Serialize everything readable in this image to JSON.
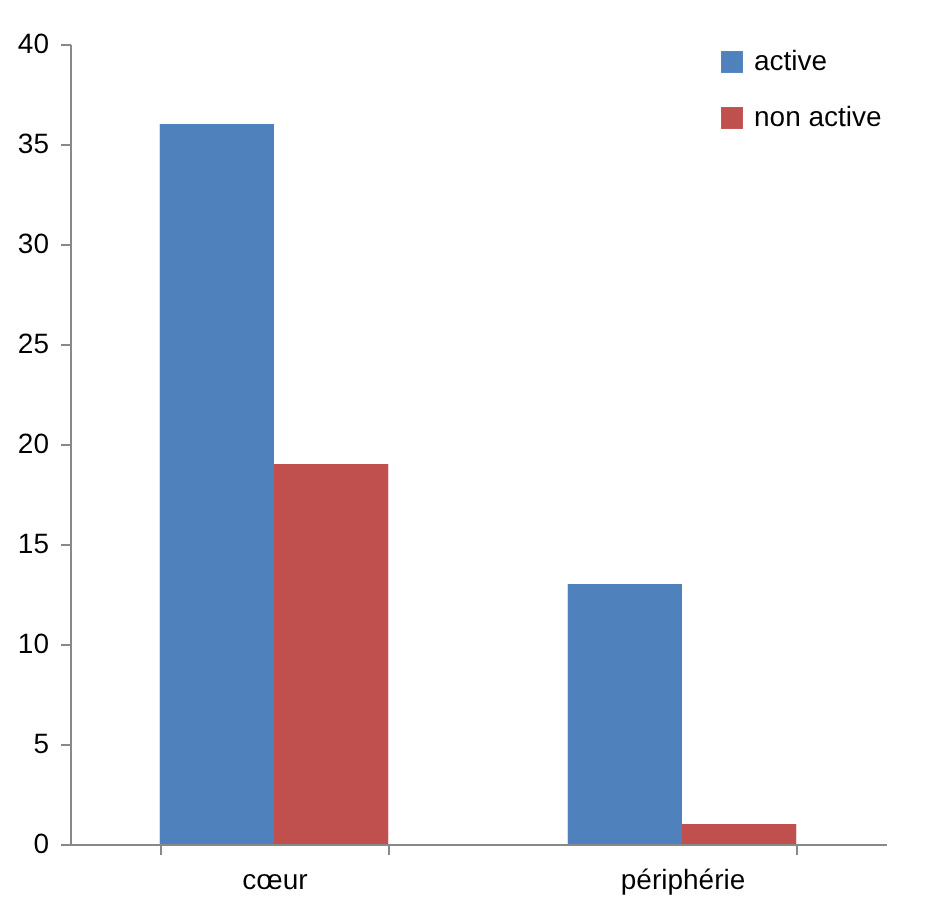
{
  "chart_data": {
    "type": "bar",
    "categories": [
      "cœur",
      "périphérie"
    ],
    "series": [
      {
        "name": "active",
        "color": "#4f81bd",
        "values": [
          36,
          13
        ]
      },
      {
        "name": "non active",
        "color": "#c0504d",
        "values": [
          19,
          1
        ]
      }
    ],
    "ylim": [
      0,
      40
    ],
    "yticks": [
      0,
      5,
      10,
      15,
      20,
      25,
      30,
      35,
      40
    ],
    "legend": "top right"
  }
}
